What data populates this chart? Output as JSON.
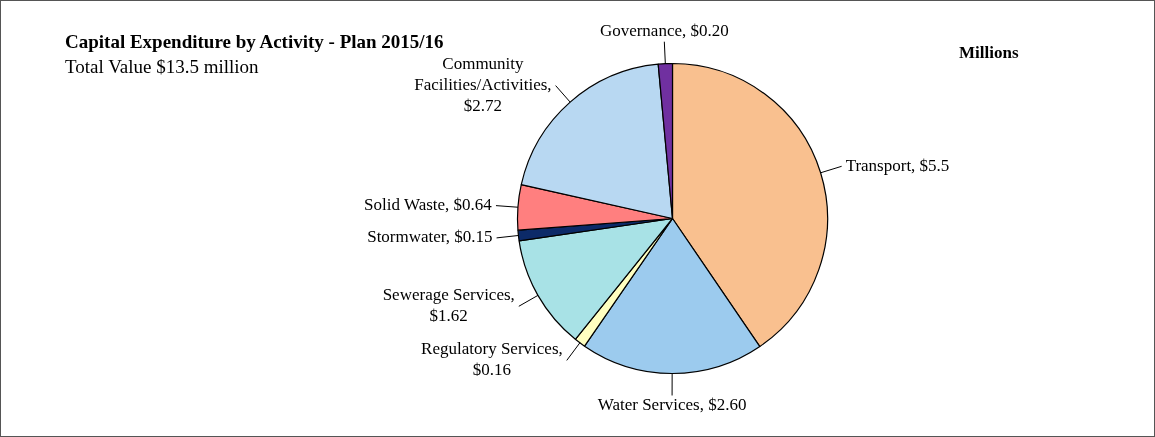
{
  "chart_data": {
    "type": "pie",
    "title": "Capital Expenditure by Activity - Plan 2015/16",
    "subtitle": "Total Value $13.5 million",
    "annotations": [
      "Millions"
    ],
    "categories": [
      "Transport, $5.5",
      "Water Services, $2.60",
      "Regulatory Services, $0.16",
      "Sewerage Services, $1.62",
      "Stormwater, $0.15",
      "Solid Waste, $0.64",
      "Community Facilities/Activities, $2.72",
      "Governance, $0.20"
    ],
    "values": [
      5.5,
      2.6,
      0.16,
      1.62,
      0.15,
      0.64,
      2.72,
      0.2
    ],
    "colors": [
      "#f9c08f",
      "#9ccbee",
      "#ffffc0",
      "#a8e2e6",
      "#0c2a68",
      "#ff7f7f",
      "#b8d8f2",
      "#7030a0"
    ],
    "legend": false
  }
}
